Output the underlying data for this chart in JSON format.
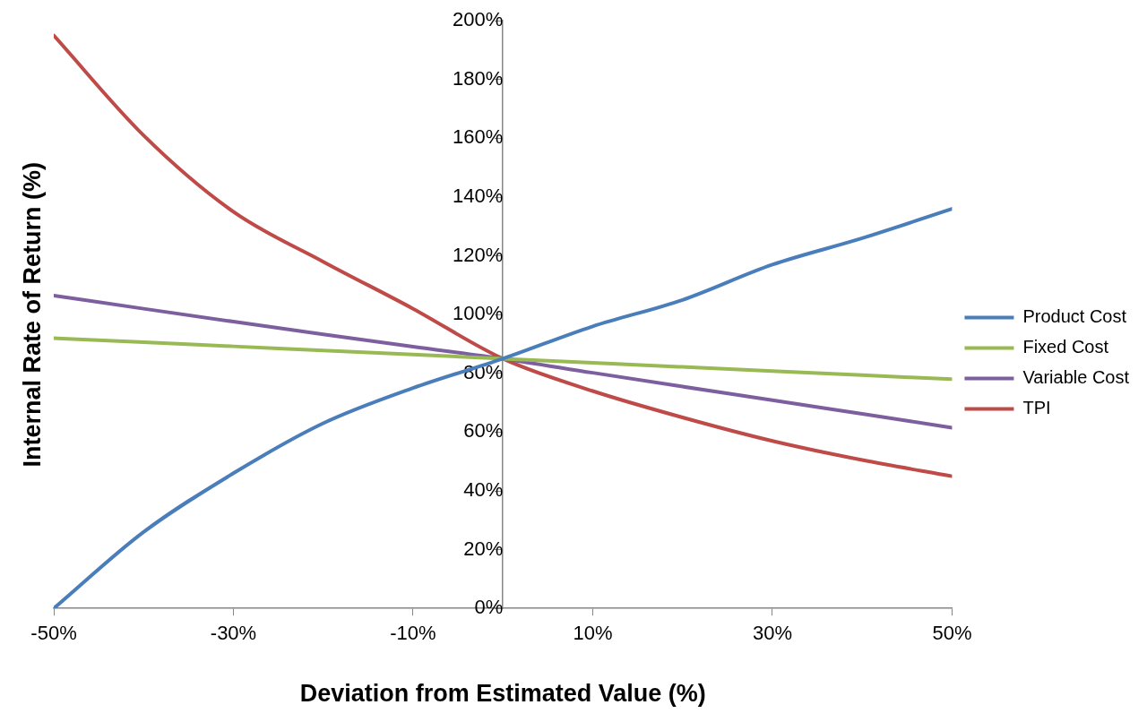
{
  "chart_data": {
    "type": "line",
    "xlabel": "Deviation from Estimated Value (%)",
    "ylabel": "Internal Rate of Return (%)",
    "x": [
      -50,
      -40,
      -30,
      -20,
      -10,
      0,
      10,
      20,
      30,
      40,
      50
    ],
    "series": [
      {
        "name": "Product Cost",
        "color": "#4a7ebb",
        "values": [
          0,
          26,
          46,
          63,
          75,
          85,
          96,
          105,
          117,
          126,
          136
        ]
      },
      {
        "name": "Fixed Cost",
        "color": "#98b954",
        "values": [
          92,
          90.6,
          89.2,
          87.8,
          86.4,
          85,
          83.6,
          82.2,
          80.8,
          79.4,
          78
        ]
      },
      {
        "name": "Variable Cost",
        "color": "#7d5fa0",
        "values": [
          106.5,
          102,
          97.6,
          93.3,
          89.1,
          85,
          80.2,
          75.5,
          70.9,
          66.2,
          61.5
        ]
      },
      {
        "name": "TPI",
        "color": "#be4b48",
        "values": [
          195,
          161,
          135,
          118,
          102,
          85,
          74,
          65,
          57,
          50.5,
          45
        ]
      }
    ],
    "xlim": [
      -50,
      50
    ],
    "xticks": [
      {
        "value": -50,
        "label": "-50%"
      },
      {
        "value": -30,
        "label": "-30%"
      },
      {
        "value": -10,
        "label": "-10%"
      },
      {
        "value": 10,
        "label": "10%"
      },
      {
        "value": 30,
        "label": "30%"
      },
      {
        "value": 50,
        "label": "50%"
      }
    ],
    "ylim": [
      0,
      200
    ],
    "yticks": [
      {
        "value": 0,
        "label": "0%"
      },
      {
        "value": 20,
        "label": "20%"
      },
      {
        "value": 40,
        "label": "40%"
      },
      {
        "value": 60,
        "label": "60%"
      },
      {
        "value": 80,
        "label": "80%"
      },
      {
        "value": 100,
        "label": "100%"
      },
      {
        "value": 120,
        "label": "120%"
      },
      {
        "value": 140,
        "label": "140%"
      },
      {
        "value": 160,
        "label": "160%"
      },
      {
        "value": 180,
        "label": "180%"
      },
      {
        "value": 200,
        "label": "200%"
      }
    ],
    "grid": false,
    "legend": "right",
    "marker": "none",
    "line_style": "solid"
  }
}
